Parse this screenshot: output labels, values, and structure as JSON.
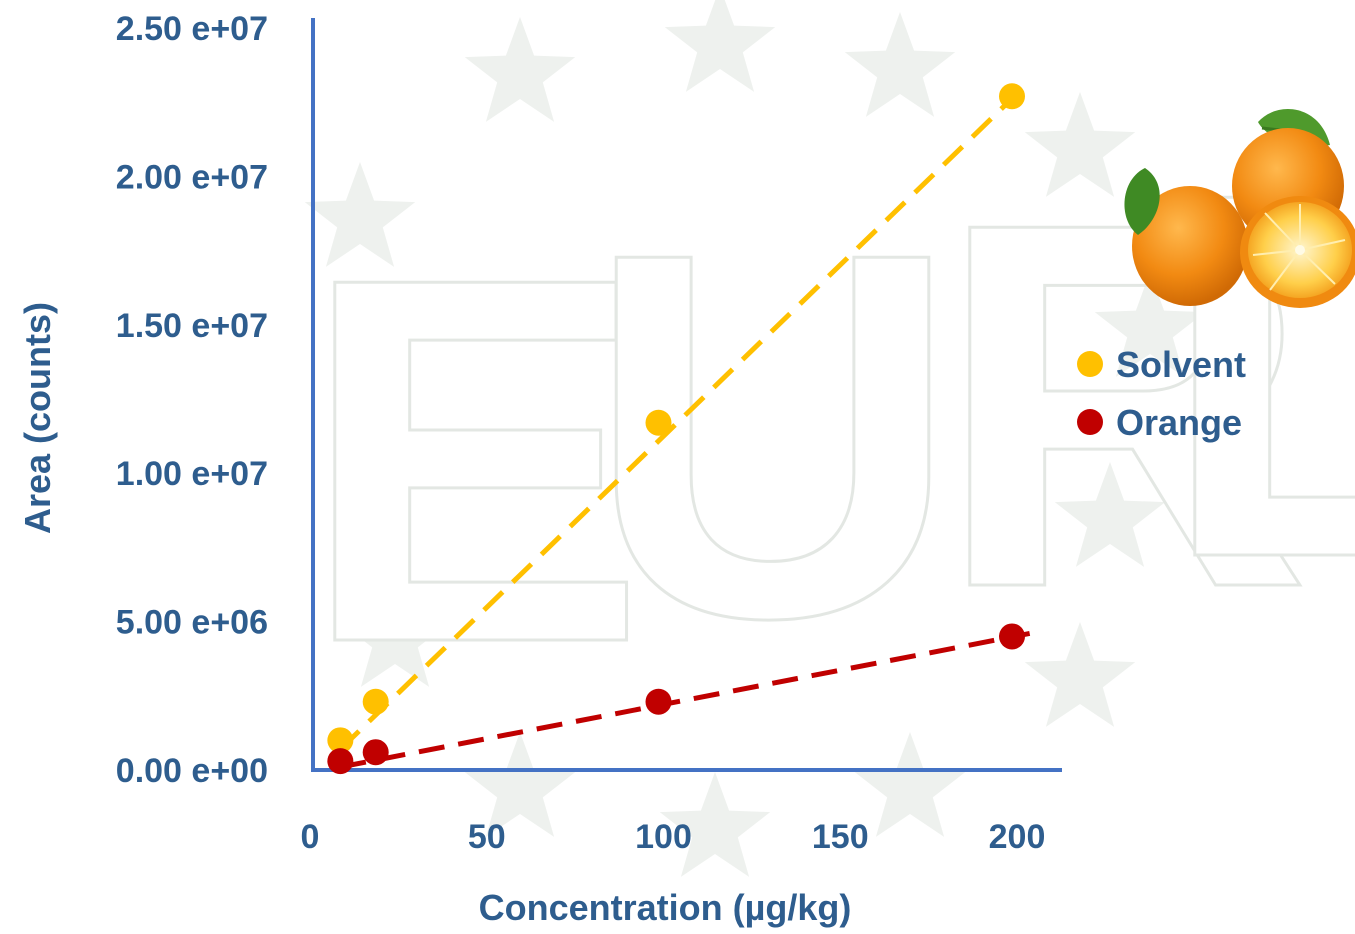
{
  "colors": {
    "axis": "#4472c4",
    "text": "#2e5d8e",
    "solvent": "#ffc000",
    "orange": "#c00000",
    "watermark": "#eef1ee"
  },
  "watermark": {
    "text": "EURL",
    "icon": "eu-stars-watermark"
  },
  "decor": {
    "icon": "oranges-picture"
  },
  "chart_data": {
    "type": "scatter",
    "xlabel": "Concentration (µg/kg)",
    "ylabel": "Area (counts)",
    "xlim": [
      0,
      200
    ],
    "ylim": [
      0,
      25000000
    ],
    "x_ticks": [
      "0",
      "50",
      "100",
      "150",
      "200"
    ],
    "y_ticks": [
      "0.00 e+00",
      "5.00 e+06",
      "1.00 e+07",
      "1.50 e+07",
      "2.00 e+07",
      "2.50 e+07"
    ],
    "grid": false,
    "legend_position": "right",
    "trendline": "linear-dashed",
    "series": [
      {
        "name": "Solvent",
        "color": "#ffc000",
        "x": [
          10,
          20,
          100,
          200
        ],
        "y": [
          1000000,
          2300000,
          11700000,
          22700000
        ],
        "trend": [
          [
            10,
            700000
          ],
          [
            205,
            23200000
          ]
        ]
      },
      {
        "name": "Orange",
        "color": "#c00000",
        "x": [
          10,
          20,
          100,
          200
        ],
        "y": [
          300000,
          600000,
          2300000,
          4500000
        ],
        "trend": [
          [
            10,
            100000
          ],
          [
            205,
            4600000
          ]
        ]
      }
    ]
  }
}
